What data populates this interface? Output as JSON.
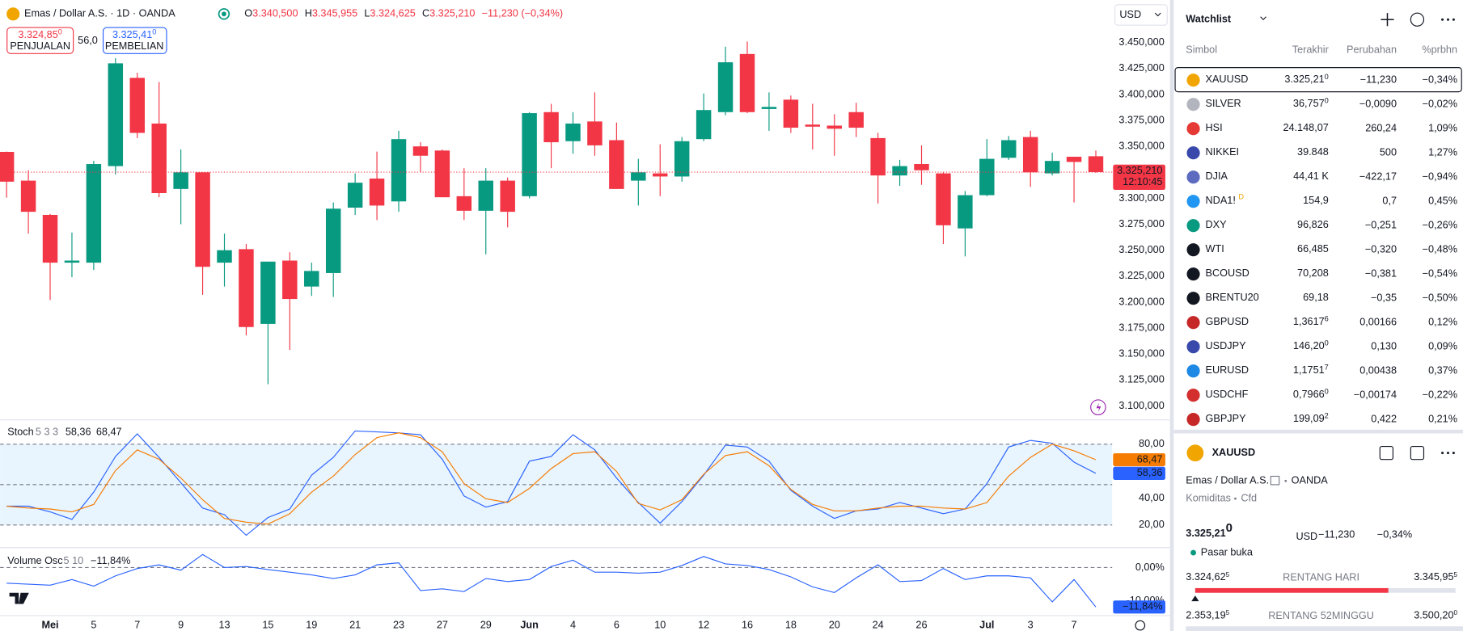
{
  "header": {
    "symbol_title": "Emas / Dollar A.S. · 1D · OANDA",
    "ohlc": [
      {
        "label": "O",
        "value": "3.340,500"
      },
      {
        "label": "H",
        "value": "3.345,955"
      },
      {
        "label": "L",
        "value": "3.324,625"
      },
      {
        "label": "C",
        "value": "3.325,210"
      }
    ],
    "change": "−11,230 (−0,34%)",
    "currency": "USD",
    "sell": {
      "price": "3.324,85",
      "sup": "0",
      "label": "PENJUALAN"
    },
    "spread": "56,0",
    "buy": {
      "price": "3.325,41",
      "sup": "0",
      "label": "PEMBELIAN"
    }
  },
  "chart_data": [
    {
      "type": "candlestick",
      "categories": [
        null,
        null,
        "Mei",
        null,
        "5",
        null,
        "7",
        null,
        "9",
        null,
        "13",
        null,
        "15",
        null,
        "19",
        null,
        "21",
        null,
        "23",
        null,
        "27",
        null,
        "29",
        null,
        "Jun",
        null,
        "4",
        null,
        "6",
        null,
        "10",
        null,
        "12",
        null,
        "16",
        null,
        "18",
        null,
        "20",
        null,
        "24",
        null,
        "26",
        null,
        null,
        "Jul",
        null,
        "3",
        null,
        "7",
        null
      ],
      "open": [
        3344.7,
        3317,
        3284,
        3238,
        3238,
        3331,
        3416,
        3372,
        3309,
        3325,
        3238,
        3251,
        3179,
        3240,
        3215,
        3228,
        3291,
        3319,
        3297,
        3350,
        3346,
        3302,
        3288,
        3317,
        3302,
        3383,
        3355,
        3374,
        3356,
        3317,
        3324,
        3321,
        3357,
        3383,
        3439,
        3386,
        3395,
        3371,
        3370,
        3383,
        3358,
        3322,
        3333,
        3324,
        3271,
        3303,
        3339,
        3359,
        3324,
        3340,
        3340.5
      ],
      "high": [
        3345,
        3327,
        3285,
        3267,
        3336,
        3435,
        3421,
        3412,
        3347,
        3325,
        3266,
        3256,
        3239,
        3248,
        3238,
        3296,
        3324,
        3345,
        3365,
        3354,
        3347,
        3329,
        3329,
        3320,
        3383,
        3391,
        3383,
        3402,
        3373,
        3338,
        3352,
        3359,
        3401,
        3446,
        3451,
        3402,
        3399,
        3391,
        3381,
        3392,
        3363,
        3337,
        3351,
        3325,
        3307,
        3357,
        3360,
        3365,
        3344,
        3340,
        3345.955
      ],
      "low": [
        3300.6,
        3266,
        3202,
        3224,
        3231,
        3323,
        3358,
        3301,
        3275,
        3207,
        3215,
        3168,
        3121,
        3154,
        3206,
        3205,
        3284,
        3279,
        3287,
        3325,
        3301,
        3279,
        3246,
        3272,
        3300,
        3329,
        3343,
        3341,
        3309,
        3293,
        3302,
        3316,
        3355,
        3380,
        3382,
        3365,
        3363,
        3347,
        3341,
        3359,
        3295,
        3312,
        3313,
        3256,
        3244,
        3302,
        3337,
        3311,
        3322,
        3296,
        3324.625
      ],
      "close": [
        3316,
        3287,
        3238,
        3240,
        3333,
        3430,
        3363,
        3305,
        3325,
        3234,
        3250,
        3176,
        3239,
        3203,
        3230,
        3290,
        3315,
        3293,
        3357,
        3341,
        3301,
        3288,
        3317,
        3287,
        3382,
        3354,
        3372,
        3351,
        3309,
        3325,
        3321,
        3355,
        3385,
        3431,
        3383,
        3388,
        3368,
        3369,
        3367,
        3368,
        3322,
        3331,
        3327,
        3274,
        3303,
        3338,
        3356,
        3325,
        3336,
        3335,
        3325.21
      ],
      "up_color": "#089981",
      "down_color": "#f23645",
      "ylim": [
        3087,
        3491
      ],
      "yticks": [
        {
          "value": 3100,
          "label": "3.100,000"
        },
        {
          "value": 3125,
          "label": "3.125,000"
        },
        {
          "value": 3150,
          "label": "3.150,000"
        },
        {
          "value": 3175,
          "label": "3.175,000"
        },
        {
          "value": 3200,
          "label": "3.200,000"
        },
        {
          "value": 3225,
          "label": "3.225,000"
        },
        {
          "value": 3250,
          "label": "3.250,000"
        },
        {
          "value": 3275,
          "label": "3.275,000"
        },
        {
          "value": 3300,
          "label": "3.300,000"
        },
        {
          "value": 3325,
          "label": "3.325,000"
        },
        {
          "value": 3350,
          "label": "3.350,000"
        },
        {
          "value": 3375,
          "label": "3.375,000"
        },
        {
          "value": 3400,
          "label": "3.400,000"
        },
        {
          "value": 3425,
          "label": "3.425,000"
        },
        {
          "value": 3450,
          "label": "3.450,000"
        }
      ],
      "last_label": "3.325,210",
      "countdown": "12:10:45"
    },
    {
      "type": "line",
      "title": "Stoch",
      "params": "5 3 3",
      "series": [
        {
          "color": "#2962ff",
          "last_label": "58,36",
          "values": [
            34.0,
            34.0,
            29.8,
            24.2,
            44.4,
            70.9,
            87.7,
            70.2,
            51.4,
            32.6,
            27.7,
            12.4,
            25.6,
            31.9,
            57.0,
            70.2,
            89.8,
            89.1,
            88.4,
            87.0,
            68.8,
            41.6,
            33.3,
            37.4,
            67.4,
            70.9,
            87.0,
            75.8,
            54.9,
            36.7,
            21.4,
            37.4,
            57.0,
            79.3,
            77.9,
            67.4,
            45.8,
            34.0,
            24.9,
            30.5,
            31.9,
            36.7,
            32.6,
            28.4,
            31.9,
            50.7,
            77.9,
            82.8,
            80.7,
            66.7,
            58.36
          ]
        },
        {
          "color": "#f57c00",
          "last_label": "68,47",
          "values": [
            34.0,
            32.6,
            31.9,
            29.8,
            35.3,
            60.5,
            75.8,
            68.8,
            54.9,
            38.8,
            24.9,
            22.1,
            20.7,
            28.4,
            44.4,
            56.3,
            72.3,
            84.9,
            88.4,
            84.9,
            74.4,
            50.7,
            39.5,
            36.7,
            47.2,
            61.9,
            73.0,
            74.4,
            59.8,
            36.0,
            31.2,
            38.8,
            57.7,
            71.6,
            74.4,
            64.0,
            46.5,
            35.3,
            30.5,
            30.5,
            32.6,
            34.0,
            34.0,
            32.6,
            31.9,
            36.7,
            56.3,
            70.2,
            80.0,
            75.1,
            68.47
          ]
        }
      ],
      "levels": [
        80,
        50,
        20
      ],
      "band_color": "#2196f3",
      "ylim": [
        5,
        97
      ],
      "yticks": [
        {
          "value": 80,
          "label": "80,00"
        },
        {
          "value": 40,
          "label": "40,00"
        },
        {
          "value": 20,
          "label": "20,00"
        }
      ]
    },
    {
      "type": "line",
      "title": "Volume Osc",
      "params": "5 10",
      "series": [
        {
          "color": "#2962ff",
          "last_label": "−11,84%",
          "values": [
            -4.7,
            -5.0,
            -5.3,
            -3.6,
            -5.6,
            -2.5,
            -0.3,
            0.8,
            -0.8,
            3.9,
            0,
            0.3,
            -0.6,
            -1.4,
            -2.2,
            -3.3,
            -2.2,
            0.8,
            1.4,
            -6.9,
            -6.4,
            -7.2,
            -3.3,
            -4.2,
            -3.6,
            0.3,
            2.2,
            -1.4,
            -1.4,
            -1.7,
            -1.4,
            0.6,
            3.3,
            1.1,
            0.6,
            -0.6,
            -2.8,
            -5.8,
            -7.5,
            -3.1,
            0.8,
            -4.2,
            -3.9,
            -0.3,
            -3.6,
            -2.5,
            -2.5,
            -3.1,
            -10.3,
            -3.6,
            -11.84
          ]
        }
      ],
      "levels": [
        0
      ],
      "ylim": [
        -14,
        5
      ],
      "yticks": [
        {
          "value": 0,
          "label": "0,00%"
        },
        {
          "value": -10,
          "label": "-10,00%"
        }
      ]
    }
  ],
  "watchlist": {
    "title": "Watchlist",
    "columns": [
      "Simbol",
      "Terakhir",
      "Perubahan",
      "%prbhn"
    ],
    "rows": [
      {
        "symbol": "XAUUSD",
        "icon_color": "#f0a500",
        "last": "3.325,21",
        "last_sup": "0",
        "change": "−11,230",
        "pct": "−0,34%",
        "color": "#f23645"
      },
      {
        "symbol": "SILVER",
        "icon_color": "#b2b5be",
        "last": "36,757",
        "last_sup": "0",
        "change": "−0,0090",
        "pct": "−0,02%",
        "color": "#f23645"
      },
      {
        "symbol": "HSI",
        "icon_color": "#e53935",
        "last": "24.148,07",
        "change": "260,24",
        "pct": "1,09%",
        "color": "#089981"
      },
      {
        "symbol": "NIKKEI",
        "icon_color": "#3949ab",
        "last": "39.848",
        "change": "500",
        "pct": "1,27%",
        "color": "#089981"
      },
      {
        "symbol": "DJIA",
        "icon_color": "#5c6bc0",
        "last": "44,41 K",
        "change": "−422,17",
        "pct": "−0,94%",
        "color": "#f23645"
      },
      {
        "symbol": "NDA1!",
        "symbol_sup": "D",
        "icon_color": "#2196f3",
        "last": "154,9",
        "change": "0,7",
        "pct": "0,45%",
        "color": "#089981"
      },
      {
        "symbol": "DXY",
        "icon_color": "#089981",
        "last": "96,826",
        "change": "−0,251",
        "pct": "−0,26%",
        "color": "#f23645"
      },
      {
        "symbol": "WTI",
        "icon_color": "#131722",
        "last": "66,485",
        "change": "−0,320",
        "pct": "−0,48%",
        "color": "#f23645"
      },
      {
        "symbol": "BCOUSD",
        "icon_color": "#131722",
        "last": "70,208",
        "change": "−0,381",
        "pct": "−0,54%",
        "color": "#f23645"
      },
      {
        "symbol": "BRENTU20",
        "icon_color": "#131722",
        "last": "69,18",
        "change": "−0,35",
        "pct": "−0,50%",
        "color": "#f23645"
      },
      {
        "symbol": "GBPUSD",
        "icon_color": "#c62828",
        "last": "1,3617",
        "last_sup": "6",
        "change": "0,00166",
        "pct": "0,12%",
        "color": "#089981"
      },
      {
        "symbol": "USDJPY",
        "icon_color": "#3949ab",
        "last": "146,20",
        "last_sup": "0",
        "change": "0,130",
        "pct": "0,09%",
        "color": "#089981"
      },
      {
        "symbol": "EURUSD",
        "icon_color": "#1e88e5",
        "last": "1,1751",
        "last_sup": "7",
        "change": "0,00438",
        "pct": "0,37%",
        "color": "#089981"
      },
      {
        "symbol": "USDCHF",
        "icon_color": "#d32f2f",
        "last": "0,7966",
        "last_sup": "0",
        "change": "−0,00174",
        "pct": "−0,22%",
        "color": "#f23645"
      },
      {
        "symbol": "GBPJPY",
        "icon_color": "#c62828",
        "last": "199,09",
        "last_sup": "2",
        "change": "0,422",
        "pct": "0,21%",
        "color": "#089981"
      }
    ]
  },
  "details": {
    "symbol": "XAUUSD",
    "name": "Emas / Dollar A.S.",
    "exchange": "OANDA",
    "category": "Komiditas",
    "subtype": "Cfd",
    "price": "3.325,21",
    "price_sup": "0",
    "currency": "USD",
    "change": "−11,230",
    "change_pct": "−0,34%",
    "status": "Pasar buka",
    "ranges": [
      {
        "label": "RENTANG HARI",
        "low": "3.324,62",
        "low_sup": "5",
        "high": "3.345,95",
        "high_sup": "5"
      },
      {
        "label": "RENTANG 52MINGGU",
        "low": "2.353,19",
        "low_sup": "5",
        "high": "3.500,20",
        "high_sup": "0"
      }
    ]
  }
}
